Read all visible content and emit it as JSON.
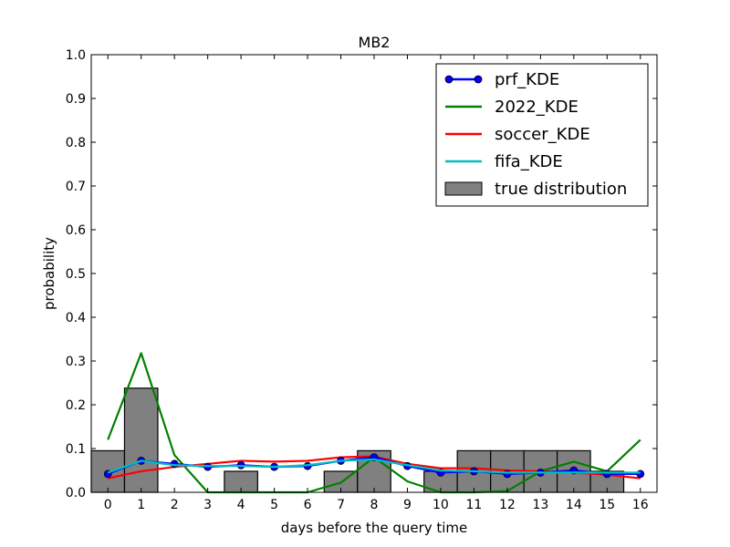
{
  "chart_data": {
    "type": "line",
    "title": "MB2",
    "xlabel": "days before the query time",
    "ylabel": "probability",
    "xlim": [
      -0.5,
      16.5
    ],
    "ylim": [
      0,
      1.0
    ],
    "x_ticks": [
      0,
      1,
      2,
      3,
      4,
      5,
      6,
      7,
      8,
      9,
      10,
      11,
      12,
      13,
      14,
      15,
      16
    ],
    "y_ticks": [
      "0.0",
      "0.1",
      "0.2",
      "0.3",
      "0.4",
      "0.5",
      "0.6",
      "0.7",
      "0.8",
      "0.9",
      "1.0"
    ],
    "grid": false,
    "legend_position": "top-right",
    "bars": {
      "name": "true distribution",
      "color": "#808080",
      "values": [
        0.095,
        0.238,
        0.0,
        0.0,
        0.048,
        0.0,
        0.0,
        0.048,
        0.095,
        0.0,
        0.048,
        0.095,
        0.095,
        0.095,
        0.095,
        0.048,
        0.0
      ]
    },
    "series": [
      {
        "name": "prf_KDE",
        "color": "#0000ff",
        "marker": "circle",
        "values": [
          0.042,
          0.072,
          0.065,
          0.058,
          0.062,
          0.058,
          0.06,
          0.072,
          0.08,
          0.06,
          0.045,
          0.048,
          0.042,
          0.045,
          0.05,
          0.042,
          0.042
        ]
      },
      {
        "name": "2022_KDE",
        "color": "#008000",
        "values": [
          0.12,
          0.318,
          0.085,
          0.0,
          0.0,
          0.0,
          0.0,
          0.022,
          0.08,
          0.025,
          0.0,
          0.0,
          0.003,
          0.048,
          0.07,
          0.048,
          0.12
        ]
      },
      {
        "name": "soccer_KDE",
        "color": "#ff0000",
        "values": [
          0.032,
          0.048,
          0.058,
          0.065,
          0.072,
          0.07,
          0.072,
          0.08,
          0.082,
          0.065,
          0.055,
          0.055,
          0.05,
          0.048,
          0.045,
          0.04,
          0.032
        ]
      },
      {
        "name": "fifa_KDE",
        "color": "#00bfbf",
        "values": [
          0.045,
          0.072,
          0.062,
          0.06,
          0.06,
          0.058,
          0.062,
          0.072,
          0.075,
          0.062,
          0.05,
          0.048,
          0.045,
          0.045,
          0.045,
          0.045,
          0.045
        ]
      }
    ]
  }
}
